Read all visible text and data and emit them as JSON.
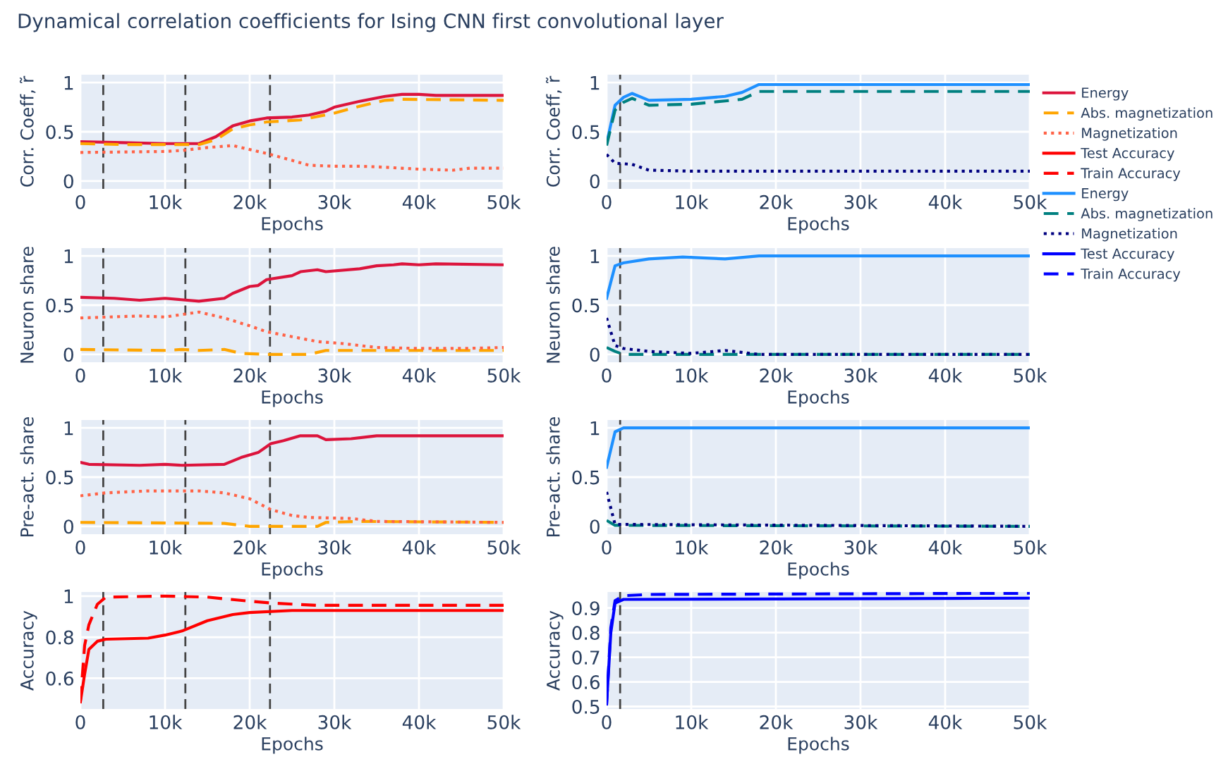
{
  "chart_data": [
    {
      "type": "line",
      "title": "Dynamical correlation coefficients for Ising CNN first convolutional layer",
      "xlabel": "Epochs",
      "ylabel": "Corr. Coeff, r̃",
      "xlim": [
        0,
        50000
      ],
      "ylim": [
        -0.08,
        1.08
      ],
      "xticks": [
        0,
        {
          "value": 10000,
          "label": "10k"
        },
        {
          "value": 20000,
          "label": "20k"
        },
        {
          "value": 30000,
          "label": "30k"
        },
        {
          "value": 40000,
          "label": "40k"
        },
        {
          "value": 50000,
          "label": "50k"
        }
      ],
      "yticks": [
        0,
        0.5,
        1
      ],
      "grid": true,
      "legend": "right",
      "ref_lines": [
        {
          "axis": "x",
          "value": 2700,
          "color": "#444444",
          "line_style": "dashed"
        },
        {
          "axis": "x",
          "value": 12400,
          "color": "#444444",
          "line_style": "dashed"
        },
        {
          "axis": "x",
          "value": 22400,
          "color": "#444444",
          "line_style": "dashed"
        }
      ],
      "series": [
        {
          "name": "Energy",
          "color": "#dc143c",
          "line_style": "solid",
          "x": [
            0,
            5000,
            10000,
            14000,
            16000,
            18000,
            20000,
            22000,
            25000,
            27000,
            29000,
            30000,
            33000,
            36000,
            38000,
            40000,
            42000,
            50000
          ],
          "values": [
            0.4,
            0.39,
            0.38,
            0.38,
            0.45,
            0.56,
            0.61,
            0.64,
            0.65,
            0.67,
            0.71,
            0.75,
            0.81,
            0.86,
            0.88,
            0.88,
            0.87,
            0.87
          ]
        },
        {
          "name": "Abs. magnetization",
          "color": "#ffa500",
          "line_style": "dashed",
          "x": [
            0,
            5000,
            10000,
            14000,
            16000,
            18000,
            20000,
            22000,
            26000,
            30000,
            33000,
            36000,
            38000,
            50000
          ],
          "values": [
            0.38,
            0.37,
            0.37,
            0.37,
            0.42,
            0.53,
            0.57,
            0.6,
            0.62,
            0.69,
            0.76,
            0.82,
            0.83,
            0.82
          ]
        },
        {
          "name": "Magnetization",
          "color": "#ff6347",
          "line_style": "dotted",
          "x": [
            0,
            10000,
            12000,
            15000,
            18000,
            20000,
            22000,
            25000,
            27000,
            30000,
            33000,
            36000,
            40000,
            44000,
            46000,
            50000
          ],
          "values": [
            0.29,
            0.3,
            0.31,
            0.34,
            0.36,
            0.32,
            0.28,
            0.21,
            0.16,
            0.15,
            0.15,
            0.14,
            0.12,
            0.11,
            0.13,
            0.13
          ]
        }
      ]
    },
    {
      "type": "line",
      "xlabel": "Epochs",
      "ylabel": "Corr. Coeff, r̃",
      "xlim": [
        0,
        50000
      ],
      "ylim": [
        -0.08,
        1.08
      ],
      "xticks": [
        0,
        {
          "value": 10000,
          "label": "10k"
        },
        {
          "value": 20000,
          "label": "20k"
        },
        {
          "value": 30000,
          "label": "30k"
        },
        {
          "value": 40000,
          "label": "40k"
        },
        {
          "value": 50000,
          "label": "50k"
        }
      ],
      "yticks": [
        0,
        0.5,
        1
      ],
      "grid": true,
      "legend": "right",
      "ref_lines": [
        {
          "axis": "x",
          "value": 1600,
          "color": "#444444",
          "line_style": "dashed"
        }
      ],
      "series": [
        {
          "name": "Energy",
          "color": "#1e90ff",
          "line_style": "solid",
          "x": [
            0,
            1000,
            2000,
            3000,
            5000,
            10000,
            14000,
            16000,
            18000,
            50000
          ],
          "values": [
            0.38,
            0.77,
            0.85,
            0.89,
            0.82,
            0.83,
            0.86,
            0.9,
            0.98,
            0.98
          ]
        },
        {
          "name": "Abs. magnetization",
          "color": "#008080",
          "line_style": "dashed",
          "x": [
            0,
            1000,
            2000,
            3000,
            5000,
            10000,
            16000,
            18000,
            50000
          ],
          "values": [
            0.36,
            0.72,
            0.8,
            0.84,
            0.77,
            0.78,
            0.83,
            0.91,
            0.91
          ]
        },
        {
          "name": "Magnetization",
          "color": "#000080",
          "line_style": "dotted",
          "x": [
            0,
            1000,
            3000,
            5000,
            10000,
            50000
          ],
          "values": [
            0.27,
            0.18,
            0.17,
            0.11,
            0.1,
            0.1
          ]
        }
      ]
    },
    {
      "type": "line",
      "xlabel": "Epochs",
      "ylabel": "Neuron share",
      "xlim": [
        0,
        50000
      ],
      "ylim": [
        -0.08,
        1.08
      ],
      "xticks": [
        0,
        {
          "value": 10000,
          "label": "10k"
        },
        {
          "value": 20000,
          "label": "20k"
        },
        {
          "value": 30000,
          "label": "30k"
        },
        {
          "value": 40000,
          "label": "40k"
        },
        {
          "value": 50000,
          "label": "50k"
        }
      ],
      "yticks": [
        0,
        0.5,
        1
      ],
      "grid": true,
      "ref_lines": [
        {
          "axis": "x",
          "value": 2700,
          "color": "#444444",
          "line_style": "dashed"
        },
        {
          "axis": "x",
          "value": 12400,
          "color": "#444444",
          "line_style": "dashed"
        },
        {
          "axis": "x",
          "value": 22400,
          "color": "#444444",
          "line_style": "dashed"
        }
      ],
      "series": [
        {
          "color": "#dc143c",
          "line_style": "solid",
          "x": [
            0,
            4000,
            7000,
            10000,
            14000,
            17000,
            18000,
            20000,
            21000,
            22000,
            25000,
            26000,
            28000,
            29000,
            33000,
            35000,
            37000,
            38000,
            40000,
            42000,
            50000
          ],
          "values": [
            0.58,
            0.57,
            0.55,
            0.57,
            0.54,
            0.57,
            0.62,
            0.69,
            0.7,
            0.76,
            0.8,
            0.84,
            0.86,
            0.84,
            0.87,
            0.9,
            0.91,
            0.92,
            0.91,
            0.92,
            0.91
          ]
        },
        {
          "color": "#ffa500",
          "line_style": "dashed",
          "x": [
            0,
            10000,
            12000,
            14000,
            17000,
            19000,
            22000,
            27000,
            29000,
            35000,
            50000
          ],
          "values": [
            0.05,
            0.04,
            0.05,
            0.04,
            0.05,
            0.01,
            0.0,
            0.0,
            0.04,
            0.04,
            0.04
          ]
        },
        {
          "color": "#ff6347",
          "line_style": "dotted",
          "x": [
            0,
            7000,
            10000,
            14000,
            17000,
            20000,
            22000,
            25000,
            28000,
            31000,
            35000,
            40000,
            45000,
            50000
          ],
          "values": [
            0.37,
            0.39,
            0.38,
            0.43,
            0.37,
            0.29,
            0.23,
            0.18,
            0.13,
            0.11,
            0.07,
            0.06,
            0.06,
            0.07
          ]
        }
      ]
    },
    {
      "type": "line",
      "xlabel": "Epochs",
      "ylabel": "Neuron share",
      "xlim": [
        0,
        50000
      ],
      "ylim": [
        -0.08,
        1.08
      ],
      "xticks": [
        0,
        {
          "value": 10000,
          "label": "10k"
        },
        {
          "value": 20000,
          "label": "20k"
        },
        {
          "value": 30000,
          "label": "30k"
        },
        {
          "value": 40000,
          "label": "40k"
        },
        {
          "value": 50000,
          "label": "50k"
        }
      ],
      "yticks": [
        0,
        0.5,
        1
      ],
      "grid": true,
      "ref_lines": [
        {
          "axis": "x",
          "value": 1600,
          "color": "#444444",
          "line_style": "dashed"
        }
      ],
      "series": [
        {
          "color": "#1e90ff",
          "line_style": "solid",
          "x": [
            0,
            1000,
            2000,
            5000,
            9000,
            14000,
            18000,
            50000
          ],
          "values": [
            0.57,
            0.9,
            0.93,
            0.97,
            0.99,
            0.97,
            1.0,
            1.0
          ]
        },
        {
          "color": "#008080",
          "line_style": "dashed",
          "x": [
            0,
            1000,
            2000,
            50000
          ],
          "values": [
            0.07,
            0.03,
            0.0,
            0.0
          ]
        },
        {
          "color": "#000080",
          "line_style": "dotted",
          "x": [
            0,
            1000,
            2000,
            5000,
            10000,
            14000,
            18000,
            50000
          ],
          "values": [
            0.37,
            0.09,
            0.06,
            0.03,
            0.01,
            0.04,
            0.0,
            0.0
          ]
        }
      ]
    },
    {
      "type": "line",
      "xlabel": "Epochs",
      "ylabel": "Pre-act. share",
      "xlim": [
        0,
        50000
      ],
      "ylim": [
        -0.08,
        1.08
      ],
      "xticks": [
        0,
        {
          "value": 10000,
          "label": "10k"
        },
        {
          "value": 20000,
          "label": "20k"
        },
        {
          "value": 30000,
          "label": "30k"
        },
        {
          "value": 40000,
          "label": "40k"
        },
        {
          "value": 50000,
          "label": "50k"
        }
      ],
      "yticks": [
        0,
        0.5,
        1
      ],
      "grid": true,
      "ref_lines": [
        {
          "axis": "x",
          "value": 2700,
          "color": "#444444",
          "line_style": "dashed"
        },
        {
          "axis": "x",
          "value": 12400,
          "color": "#444444",
          "line_style": "dashed"
        },
        {
          "axis": "x",
          "value": 22400,
          "color": "#444444",
          "line_style": "dashed"
        }
      ],
      "series": [
        {
          "color": "#dc143c",
          "line_style": "solid",
          "x": [
            0,
            1000,
            7000,
            10000,
            12000,
            17000,
            19000,
            21000,
            22500,
            24000,
            26000,
            28000,
            29000,
            32000,
            35000,
            50000
          ],
          "values": [
            0.65,
            0.63,
            0.62,
            0.63,
            0.62,
            0.63,
            0.7,
            0.75,
            0.84,
            0.87,
            0.92,
            0.92,
            0.88,
            0.89,
            0.92,
            0.92
          ]
        },
        {
          "color": "#ffa500",
          "line_style": "dashed",
          "x": [
            0,
            17000,
            20000,
            28000,
            29000,
            33000,
            50000
          ],
          "values": [
            0.04,
            0.03,
            0.0,
            0.0,
            0.04,
            0.05,
            0.04
          ]
        },
        {
          "color": "#ff6347",
          "line_style": "dotted",
          "x": [
            0,
            3000,
            8000,
            14000,
            17000,
            20000,
            22500,
            25000,
            27000,
            32000,
            35000,
            50000
          ],
          "values": [
            0.31,
            0.34,
            0.36,
            0.36,
            0.34,
            0.28,
            0.17,
            0.11,
            0.09,
            0.08,
            0.05,
            0.04
          ]
        }
      ]
    },
    {
      "type": "line",
      "xlabel": "Epochs",
      "ylabel": "Pre-act. share",
      "xlim": [
        0,
        50000
      ],
      "ylim": [
        -0.08,
        1.08
      ],
      "xticks": [
        0,
        {
          "value": 10000,
          "label": "10k"
        },
        {
          "value": 20000,
          "label": "20k"
        },
        {
          "value": 30000,
          "label": "30k"
        },
        {
          "value": 40000,
          "label": "40k"
        },
        {
          "value": 50000,
          "label": "50k"
        }
      ],
      "yticks": [
        0,
        0.5,
        1
      ],
      "grid": true,
      "ref_lines": [
        {
          "axis": "x",
          "value": 1600,
          "color": "#444444",
          "line_style": "dashed"
        }
      ],
      "series": [
        {
          "color": "#1e90ff",
          "line_style": "solid",
          "x": [
            0,
            1000,
            2000,
            50000
          ],
          "values": [
            0.6,
            0.96,
            1.0,
            1.0
          ]
        },
        {
          "color": "#008080",
          "line_style": "dashed",
          "x": [
            0,
            1000,
            50000
          ],
          "values": [
            0.06,
            0.01,
            0.0
          ]
        },
        {
          "color": "#000080",
          "line_style": "dotted",
          "x": [
            0,
            1000,
            50000
          ],
          "values": [
            0.35,
            0.02,
            0.0
          ]
        }
      ]
    },
    {
      "type": "line",
      "xlabel": "Epochs",
      "ylabel": "Accuracy",
      "xlim": [
        0,
        50000
      ],
      "ylim": [
        0.45,
        1.02
      ],
      "xticks": [
        0,
        {
          "value": 10000,
          "label": "10k"
        },
        {
          "value": 20000,
          "label": "20k"
        },
        {
          "value": 30000,
          "label": "30k"
        },
        {
          "value": 40000,
          "label": "40k"
        },
        {
          "value": 50000,
          "label": "50k"
        }
      ],
      "yticks": [
        0.6,
        0.8,
        1
      ],
      "grid": true,
      "legend": "right",
      "ref_lines": [
        {
          "axis": "x",
          "value": 2700,
          "color": "#444444",
          "line_style": "dashed"
        },
        {
          "axis": "x",
          "value": 12400,
          "color": "#444444",
          "line_style": "dashed"
        },
        {
          "axis": "x",
          "value": 22400,
          "color": "#444444",
          "line_style": "dashed"
        }
      ],
      "series": [
        {
          "name": "Test Accuracy",
          "color": "#ff0000",
          "line_style": "solid",
          "x": [
            0,
            500,
            1000,
            2000,
            3000,
            8000,
            10000,
            12000,
            15000,
            18000,
            20000,
            25000,
            50000
          ],
          "values": [
            0.485,
            0.62,
            0.74,
            0.78,
            0.79,
            0.795,
            0.81,
            0.83,
            0.88,
            0.91,
            0.92,
            0.93,
            0.93
          ]
        },
        {
          "name": "Train Accuracy",
          "color": "#ff0000",
          "line_style": "dashed",
          "x": [
            0,
            500,
            1000,
            2000,
            3000,
            10000,
            15000,
            20000,
            23000,
            28000,
            50000
          ],
          "values": [
            0.49,
            0.76,
            0.86,
            0.96,
            0.995,
            1.0,
            0.995,
            0.975,
            0.965,
            0.955,
            0.955
          ]
        }
      ]
    },
    {
      "type": "line",
      "xlabel": "Epochs",
      "ylabel": "Accuracy",
      "xlim": [
        0,
        50000
      ],
      "ylim": [
        0.49,
        0.965
      ],
      "xticks": [
        0,
        {
          "value": 10000,
          "label": "10k"
        },
        {
          "value": 20000,
          "label": "20k"
        },
        {
          "value": 30000,
          "label": "30k"
        },
        {
          "value": 40000,
          "label": "40k"
        },
        {
          "value": 50000,
          "label": "50k"
        }
      ],
      "yticks": [
        0.5,
        0.6,
        0.7,
        0.8,
        0.9
      ],
      "grid": true,
      "legend": "right",
      "ref_lines": [
        {
          "axis": "x",
          "value": 1600,
          "color": "#444444",
          "line_style": "dashed"
        }
      ],
      "series": [
        {
          "name": "Test Accuracy",
          "color": "#0000ff",
          "line_style": "solid",
          "x": [
            0,
            500,
            1000,
            2000,
            50000
          ],
          "values": [
            0.51,
            0.8,
            0.92,
            0.935,
            0.94
          ]
        },
        {
          "name": "Train Accuracy",
          "color": "#0000ff",
          "line_style": "dashed",
          "x": [
            0,
            500,
            1000,
            2000,
            5000,
            50000
          ],
          "values": [
            0.51,
            0.82,
            0.93,
            0.95,
            0.955,
            0.96
          ]
        }
      ]
    }
  ]
}
